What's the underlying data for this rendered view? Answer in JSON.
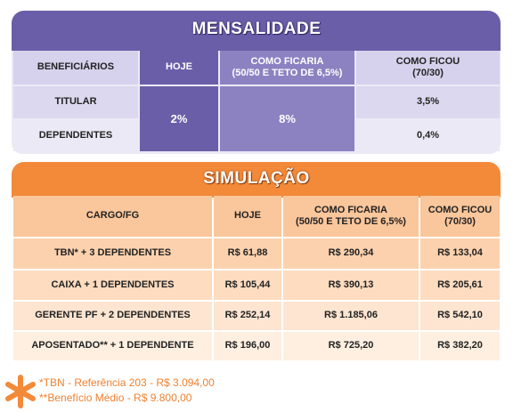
{
  "mensalidade": {
    "title": "MENSALIDADE",
    "header": [
      "BENEFICIÁRIOS",
      "HOJE",
      "COMO FICARIA\n(50/50 E TETO DE 6,5%)",
      "COMO FICOU\n(70/30)"
    ],
    "beneficiarios": [
      "TITULAR",
      "DEPENDENTES"
    ],
    "hoje": "2%",
    "como_ficaria": "8%",
    "como_ficou": [
      "3,5%",
      "0,4%"
    ]
  },
  "simulacao": {
    "title": "SIMULAÇÃO",
    "header": [
      "CARGO/FG",
      "HOJE",
      "COMO FICARIA\n(50/50 E TETO DE 6,5%)",
      "COMO FICOU\n(70/30)"
    ],
    "rows": [
      [
        "TBN* + 3 DEPENDENTES",
        "R$ 61,88",
        "R$ 290,34",
        "R$ 133,04"
      ],
      [
        "CAIXA  + 1 DEPENDENTES",
        "R$ 105,44",
        "R$ 390,13",
        "R$ 205,61"
      ],
      [
        "GERENTE PF  + 2 DEPENDENTES",
        "R$ 252,14",
        "R$ 1.185,06",
        "R$ 542,10"
      ],
      [
        "APOSENTADO** + 1 DEPENDENTE",
        "R$ 196,00",
        "R$ 725,20",
        "R$ 382,20"
      ]
    ]
  },
  "footnotes": [
    "*TBN - Referência 203 - R$ 3.094,00",
    "**Benefício Médio - R$ 9.800,00"
  ]
}
